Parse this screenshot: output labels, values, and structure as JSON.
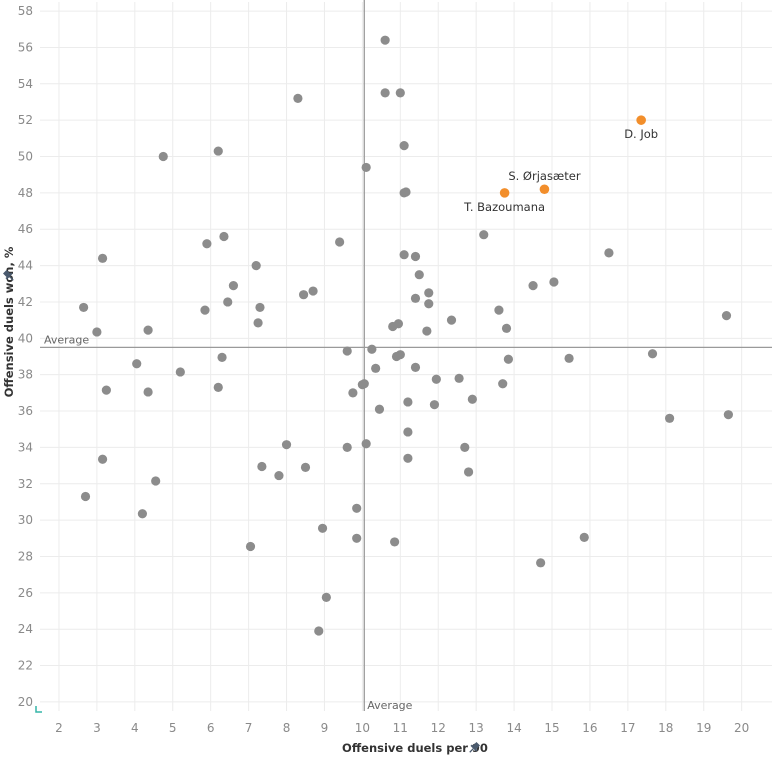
{
  "chart_data": {
    "type": "scatter",
    "xlabel": "Offensive duels per 90",
    "ylabel": "Offensive duels won, %",
    "xlim": [
      1.5,
      20.8
    ],
    "ylim": [
      19.5,
      58.5
    ],
    "x_ticks": [
      2,
      3,
      4,
      5,
      6,
      7,
      8,
      9,
      10,
      11,
      12,
      13,
      14,
      15,
      16,
      17,
      18,
      19,
      20
    ],
    "y_ticks": [
      20,
      22,
      24,
      26,
      28,
      30,
      32,
      34,
      36,
      38,
      40,
      42,
      44,
      46,
      48,
      50,
      52,
      54,
      56,
      58
    ],
    "grid": true,
    "reference_lines": {
      "x": {
        "value": 10.05,
        "label": "Average"
      },
      "y": {
        "value": 39.5,
        "label": "Average"
      }
    },
    "colors": {
      "default": "#8c8c8c",
      "highlight": "#f28e2b",
      "reference": "#9a9a9a",
      "grid": "#ececec"
    },
    "pin_icon": "pin-icon",
    "points": [
      {
        "x": 10.6,
        "y": 56.4
      },
      {
        "x": 10.6,
        "y": 53.5
      },
      {
        "x": 11.0,
        "y": 53.5
      },
      {
        "x": 8.3,
        "y": 53.2
      },
      {
        "x": 11.1,
        "y": 50.6
      },
      {
        "x": 6.2,
        "y": 50.3
      },
      {
        "x": 4.75,
        "y": 50.0
      },
      {
        "x": 10.1,
        "y": 49.4
      },
      {
        "x": 11.1,
        "y": 48.0
      },
      {
        "x": 11.15,
        "y": 48.05
      },
      {
        "x": 13.2,
        "y": 45.7
      },
      {
        "x": 6.35,
        "y": 45.6
      },
      {
        "x": 9.4,
        "y": 45.3
      },
      {
        "x": 5.9,
        "y": 45.2
      },
      {
        "x": 16.5,
        "y": 44.7
      },
      {
        "x": 11.1,
        "y": 44.6
      },
      {
        "x": 11.4,
        "y": 44.5
      },
      {
        "x": 3.15,
        "y": 44.4
      },
      {
        "x": 7.2,
        "y": 44.0
      },
      {
        "x": 11.5,
        "y": 43.5
      },
      {
        "x": 15.05,
        "y": 43.1
      },
      {
        "x": 14.5,
        "y": 42.9
      },
      {
        "x": 6.6,
        "y": 42.9
      },
      {
        "x": 8.7,
        "y": 42.6
      },
      {
        "x": 11.75,
        "y": 42.5
      },
      {
        "x": 8.45,
        "y": 42.4
      },
      {
        "x": 11.4,
        "y": 42.2
      },
      {
        "x": 6.45,
        "y": 42.0
      },
      {
        "x": 11.75,
        "y": 41.9
      },
      {
        "x": 2.65,
        "y": 41.7
      },
      {
        "x": 7.3,
        "y": 41.7
      },
      {
        "x": 5.85,
        "y": 41.55
      },
      {
        "x": 13.6,
        "y": 41.55
      },
      {
        "x": 19.6,
        "y": 41.25
      },
      {
        "x": 12.35,
        "y": 41.0
      },
      {
        "x": 7.25,
        "y": 40.85
      },
      {
        "x": 10.95,
        "y": 40.8
      },
      {
        "x": 10.8,
        "y": 40.65
      },
      {
        "x": 13.8,
        "y": 40.55
      },
      {
        "x": 4.35,
        "y": 40.45
      },
      {
        "x": 11.7,
        "y": 40.4
      },
      {
        "x": 3.0,
        "y": 40.35
      },
      {
        "x": 10.25,
        "y": 39.4
      },
      {
        "x": 9.6,
        "y": 39.3
      },
      {
        "x": 17.65,
        "y": 39.15
      },
      {
        "x": 11.0,
        "y": 39.1
      },
      {
        "x": 10.9,
        "y": 39.0
      },
      {
        "x": 6.3,
        "y": 38.95
      },
      {
        "x": 15.45,
        "y": 38.9
      },
      {
        "x": 13.85,
        "y": 38.85
      },
      {
        "x": 4.05,
        "y": 38.6
      },
      {
        "x": 11.4,
        "y": 38.4
      },
      {
        "x": 10.35,
        "y": 38.35
      },
      {
        "x": 5.2,
        "y": 38.15
      },
      {
        "x": 12.55,
        "y": 37.8
      },
      {
        "x": 11.95,
        "y": 37.75
      },
      {
        "x": 13.7,
        "y": 37.5
      },
      {
        "x": 10.05,
        "y": 37.5
      },
      {
        "x": 10.0,
        "y": 37.45
      },
      {
        "x": 6.2,
        "y": 37.3
      },
      {
        "x": 3.25,
        "y": 37.15
      },
      {
        "x": 4.35,
        "y": 37.05
      },
      {
        "x": 9.75,
        "y": 37.0
      },
      {
        "x": 12.9,
        "y": 36.65
      },
      {
        "x": 11.2,
        "y": 36.5
      },
      {
        "x": 11.9,
        "y": 36.35
      },
      {
        "x": 10.45,
        "y": 36.1
      },
      {
        "x": 19.65,
        "y": 35.8
      },
      {
        "x": 18.1,
        "y": 35.6
      },
      {
        "x": 11.2,
        "y": 34.85
      },
      {
        "x": 8.0,
        "y": 34.15
      },
      {
        "x": 10.1,
        "y": 34.2
      },
      {
        "x": 12.7,
        "y": 34.0
      },
      {
        "x": 9.6,
        "y": 34.0
      },
      {
        "x": 11.2,
        "y": 33.4
      },
      {
        "x": 3.15,
        "y": 33.35
      },
      {
        "x": 7.35,
        "y": 32.95
      },
      {
        "x": 8.5,
        "y": 32.9
      },
      {
        "x": 12.8,
        "y": 32.65
      },
      {
        "x": 7.8,
        "y": 32.45
      },
      {
        "x": 4.55,
        "y": 32.15
      },
      {
        "x": 2.7,
        "y": 31.3
      },
      {
        "x": 9.85,
        "y": 30.65
      },
      {
        "x": 4.2,
        "y": 30.35
      },
      {
        "x": 8.95,
        "y": 29.55
      },
      {
        "x": 15.85,
        "y": 29.05
      },
      {
        "x": 9.85,
        "y": 29.0
      },
      {
        "x": 10.85,
        "y": 28.8
      },
      {
        "x": 7.05,
        "y": 28.55
      },
      {
        "x": 14.7,
        "y": 27.65
      },
      {
        "x": 9.05,
        "y": 25.75
      },
      {
        "x": 8.85,
        "y": 23.9
      }
    ],
    "highlighted": [
      {
        "x": 17.35,
        "y": 52.0,
        "label": "D. Job"
      },
      {
        "x": 14.8,
        "y": 48.2,
        "label": "S. Ørjasæter"
      },
      {
        "x": 13.75,
        "y": 48.0,
        "label": "T. Bazoumana"
      }
    ]
  }
}
